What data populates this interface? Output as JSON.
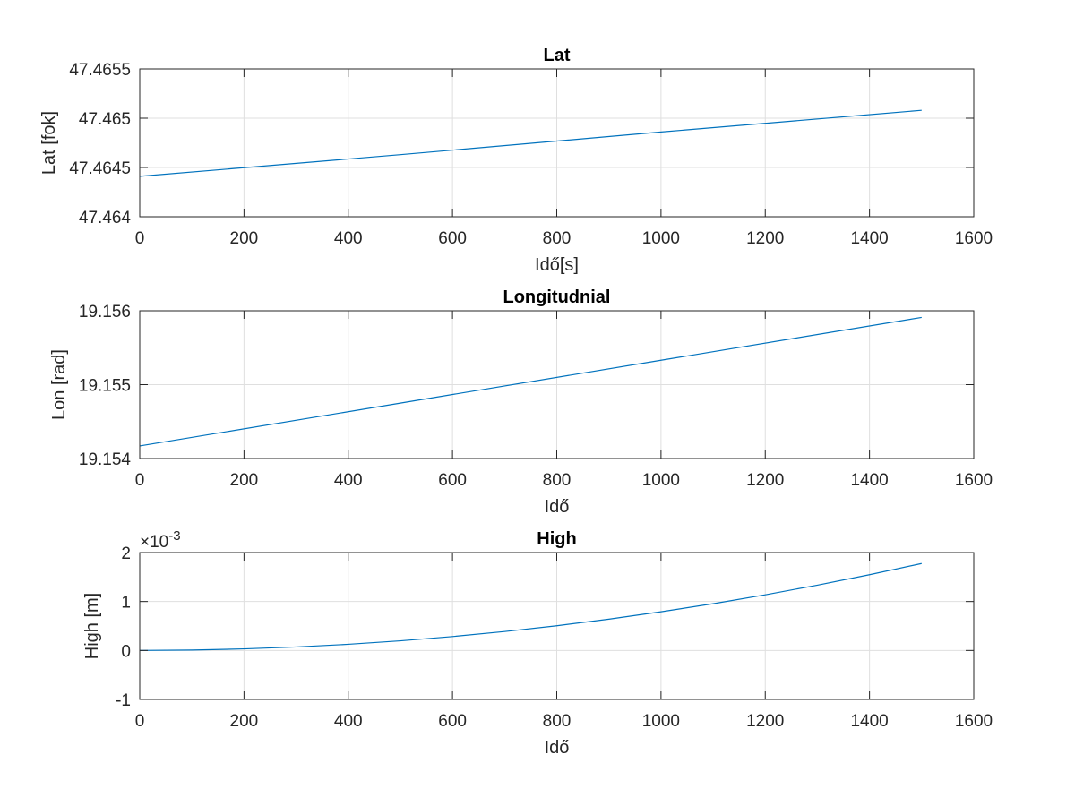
{
  "chart_data": [
    {
      "type": "line",
      "title": "Lat",
      "xlabel": "Idő[s]",
      "ylabel": "Lat [fok]",
      "xlim": [
        0,
        1600
      ],
      "ylim": [
        47.464,
        47.4655
      ],
      "xticks": [
        0,
        200,
        400,
        600,
        800,
        1000,
        1200,
        1400,
        1600
      ],
      "xtick_labels": [
        "0",
        "200",
        "400",
        "600",
        "800",
        "1000",
        "1200",
        "1400",
        "1600"
      ],
      "yticks": [
        47.464,
        47.4645,
        47.465,
        47.4655
      ],
      "ytick_labels": [
        "47.464",
        "47.4645",
        "47.465",
        "47.4655"
      ],
      "grid": true,
      "series": [
        {
          "x": [
            0,
            500,
            1000,
            1500
          ],
          "y": [
            47.46441,
            47.46463,
            47.46486,
            47.46508
          ]
        }
      ]
    },
    {
      "type": "line",
      "title": "Longitudnial",
      "xlabel": "Idő",
      "ylabel": "Lon [rad]",
      "xlim": [
        0,
        1600
      ],
      "ylim": [
        19.154,
        19.156
      ],
      "xticks": [
        0,
        200,
        400,
        600,
        800,
        1000,
        1200,
        1400,
        1600
      ],
      "xtick_labels": [
        "0",
        "200",
        "400",
        "600",
        "800",
        "1000",
        "1200",
        "1400",
        "1600"
      ],
      "yticks": [
        19.154,
        19.155,
        19.156
      ],
      "ytick_labels": [
        "19.154",
        "19.155",
        "19.156"
      ],
      "grid": true,
      "series": [
        {
          "x": [
            0,
            500,
            1000,
            1500
          ],
          "y": [
            19.15417,
            19.15475,
            19.15533,
            19.15591
          ]
        }
      ]
    },
    {
      "type": "line",
      "title": "High",
      "xlabel": "Idő",
      "ylabel": "High [m]",
      "xlim": [
        0,
        1600
      ],
      "ylim": [
        -1,
        2
      ],
      "exponent_label": "×10",
      "exponent_power": "-3",
      "xticks": [
        0,
        200,
        400,
        600,
        800,
        1000,
        1200,
        1400,
        1600
      ],
      "xtick_labels": [
        "0",
        "200",
        "400",
        "600",
        "800",
        "1000",
        "1200",
        "1400",
        "1600"
      ],
      "yticks": [
        -1,
        0,
        1,
        2
      ],
      "ytick_labels": [
        "-1",
        "0",
        "1",
        "2"
      ],
      "grid": true,
      "series": [
        {
          "x": [
            0,
            100,
            200,
            300,
            400,
            500,
            600,
            700,
            800,
            900,
            1000,
            1100,
            1200,
            1300,
            1400,
            1500
          ],
          "y": [
            0,
            0.008,
            0.032,
            0.071,
            0.126,
            0.197,
            0.284,
            0.387,
            0.505,
            0.64,
            0.79,
            0.955,
            1.137,
            1.334,
            1.547,
            1.776
          ]
        }
      ]
    }
  ],
  "colors": {
    "series": "#0072BD",
    "axis": "#262626",
    "grid": "#dfdfdf",
    "title": "#000000"
  }
}
